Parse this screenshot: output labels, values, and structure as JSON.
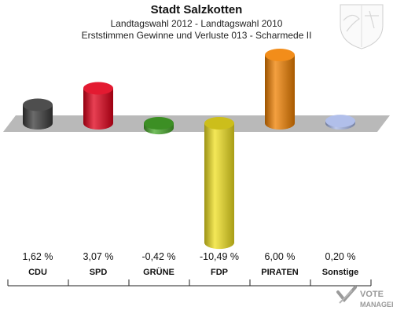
{
  "header": {
    "title": "Stadt Salzkotten",
    "subtitle1": "Landtagswahl 2012 - Landtagswahl 2010",
    "subtitle2": "Erststimmen Gewinne und Verluste 013 - Scharmede II"
  },
  "chart_data": {
    "type": "bar",
    "categories": [
      "CDU",
      "SPD",
      "GRÜNE",
      "FDP",
      "PIRATEN",
      "Sonstige"
    ],
    "values": [
      1.62,
      3.07,
      -0.42,
      -10.49,
      6.0,
      0.2
    ],
    "value_labels": [
      "1,62 %",
      "3,07 %",
      "-0,42 %",
      "-10,49 %",
      "6,00 %",
      "0,20 %"
    ],
    "colors": [
      "#3a3a3a",
      "#e0001a",
      "#46a82a",
      "#f0e020",
      "#f08000",
      "#a8b8e8"
    ],
    "unit": "%"
  },
  "branding": {
    "logo_line1": "VOTE",
    "logo_line2": "MANAGER"
  }
}
